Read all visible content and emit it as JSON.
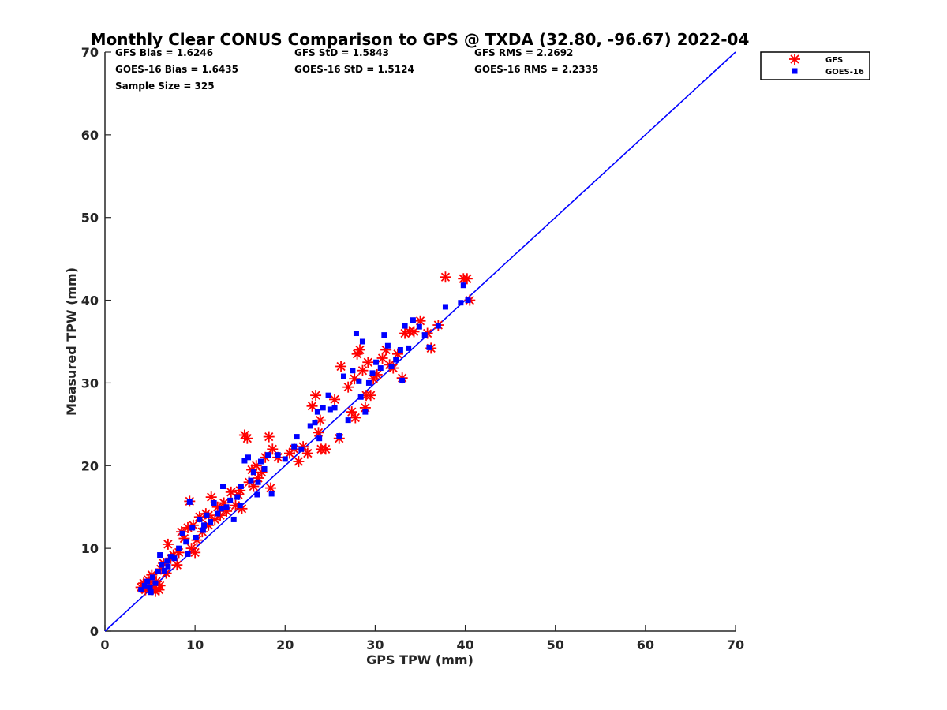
{
  "chart_data": {
    "type": "scatter",
    "title": "Monthly Clear CONUS Comparison to GPS @ TXDA (32.80, -96.67) 2022-04",
    "xlabel": "GPS TPW (mm)",
    "ylabel": "Measured TPW (mm)",
    "xlim": [
      0,
      70
    ],
    "ylim": [
      0,
      70
    ],
    "xticks": [
      "0",
      "10",
      "20",
      "30",
      "40",
      "50",
      "60",
      "70"
    ],
    "yticks": [
      "0",
      "10",
      "20",
      "30",
      "40",
      "50",
      "60",
      "70"
    ],
    "grid": false,
    "legend_position": "top-right (outside plot)",
    "stats": [
      "GFS Bias = 1.6246",
      "GFS StD = 1.5843",
      "GFS RMS = 2.2692",
      "GOES-16 Bias = 1.6435",
      "GOES-16 StD = 1.5124",
      "GOES-16 RMS = 2.2335",
      "Sample Size = 325"
    ],
    "reference_line": {
      "x": [
        0,
        70
      ],
      "y": [
        0,
        70
      ],
      "color": "#0000ff"
    },
    "series": [
      {
        "name": "GFS",
        "marker": "asterisk",
        "color": "#ff0000",
        "points": [
          [
            4.0,
            5.3
          ],
          [
            4.3,
            5.8
          ],
          [
            4.5,
            5.0
          ],
          [
            4.8,
            6.2
          ],
          [
            5.0,
            5.5
          ],
          [
            5.2,
            6.8
          ],
          [
            5.5,
            5.2
          ],
          [
            5.7,
            6.0
          ],
          [
            6.0,
            5.0
          ],
          [
            6.2,
            7.5
          ],
          [
            6.5,
            8.2
          ],
          [
            6.8,
            7.0
          ],
          [
            7.0,
            10.5
          ],
          [
            7.3,
            8.8
          ],
          [
            7.6,
            9.2
          ],
          [
            8.0,
            8.0
          ],
          [
            8.5,
            12.0
          ],
          [
            8.8,
            11.2
          ],
          [
            9.2,
            12.5
          ],
          [
            9.4,
            15.7
          ],
          [
            9.6,
            10.0
          ],
          [
            9.8,
            12.8
          ],
          [
            10.0,
            9.5
          ],
          [
            10.2,
            11.0
          ],
          [
            10.5,
            13.8
          ],
          [
            10.8,
            12.0
          ],
          [
            11.2,
            14.2
          ],
          [
            11.5,
            12.8
          ],
          [
            11.8,
            16.2
          ],
          [
            12.2,
            13.5
          ],
          [
            12.5,
            15.0
          ],
          [
            12.8,
            14.0
          ],
          [
            13.2,
            15.5
          ],
          [
            13.5,
            14.5
          ],
          [
            14.0,
            16.8
          ],
          [
            14.5,
            15.2
          ],
          [
            15.0,
            17.0
          ],
          [
            15.2,
            14.8
          ],
          [
            15.5,
            23.7
          ],
          [
            15.8,
            23.3
          ],
          [
            16.0,
            18.0
          ],
          [
            16.3,
            19.5
          ],
          [
            16.5,
            17.5
          ],
          [
            16.8,
            20.0
          ],
          [
            17.0,
            18.5
          ],
          [
            17.4,
            19.2
          ],
          [
            17.8,
            21.0
          ],
          [
            18.2,
            23.5
          ],
          [
            18.4,
            17.3
          ],
          [
            18.6,
            22.0
          ],
          [
            19.2,
            21.0
          ],
          [
            20.5,
            21.5
          ],
          [
            21.0,
            22.0
          ],
          [
            21.5,
            20.5
          ],
          [
            22.0,
            22.3
          ],
          [
            23.0,
            27.2
          ],
          [
            23.4,
            28.5
          ],
          [
            23.7,
            24.0
          ],
          [
            23.9,
            25.5
          ],
          [
            24.0,
            22.0
          ],
          [
            24.5,
            22.0
          ],
          [
            25.5,
            28.0
          ],
          [
            26.0,
            23.3
          ],
          [
            26.2,
            32.0
          ],
          [
            27.0,
            29.5
          ],
          [
            27.4,
            26.5
          ],
          [
            27.7,
            30.5
          ],
          [
            28.0,
            33.5
          ],
          [
            28.3,
            34.0
          ],
          [
            28.6,
            31.5
          ],
          [
            28.9,
            27.0
          ],
          [
            29.2,
            32.5
          ],
          [
            29.5,
            28.5
          ],
          [
            29.8,
            30.5
          ],
          [
            30.2,
            31.0
          ],
          [
            30.8,
            33.0
          ],
          [
            31.2,
            34.0
          ],
          [
            31.6,
            32.2
          ],
          [
            32.0,
            31.8
          ],
          [
            32.5,
            33.5
          ],
          [
            33.0,
            30.6
          ],
          [
            33.3,
            36.0
          ],
          [
            33.8,
            36.2
          ],
          [
            34.3,
            36.2
          ],
          [
            35.0,
            37.5
          ],
          [
            35.8,
            36.0
          ],
          [
            36.2,
            34.2
          ],
          [
            37.0,
            37.0
          ],
          [
            37.8,
            42.8
          ],
          [
            39.8,
            42.6
          ],
          [
            40.2,
            42.6
          ],
          [
            40.5,
            40.0
          ],
          [
            5.6,
            4.8
          ],
          [
            6.1,
            5.5
          ],
          [
            8.2,
            9.5
          ],
          [
            11.5,
            14.0
          ],
          [
            14.8,
            16.5
          ],
          [
            22.5,
            21.5
          ],
          [
            27.8,
            25.8
          ],
          [
            29.0,
            28.5
          ]
        ]
      },
      {
        "name": "GOES-16",
        "marker": "square",
        "color": "#0000ff",
        "points": [
          [
            4.0,
            5.0
          ],
          [
            4.4,
            5.5
          ],
          [
            4.7,
            6.0
          ],
          [
            5.0,
            5.2
          ],
          [
            5.3,
            6.5
          ],
          [
            5.6,
            5.8
          ],
          [
            5.9,
            7.2
          ],
          [
            6.1,
            9.2
          ],
          [
            6.3,
            8.0
          ],
          [
            6.6,
            7.3
          ],
          [
            6.9,
            8.5
          ],
          [
            7.3,
            9.0
          ],
          [
            7.7,
            8.8
          ],
          [
            8.2,
            10.0
          ],
          [
            8.6,
            11.8
          ],
          [
            9.0,
            10.8
          ],
          [
            9.4,
            15.6
          ],
          [
            9.7,
            12.5
          ],
          [
            10.1,
            11.3
          ],
          [
            10.5,
            13.5
          ],
          [
            10.9,
            12.2
          ],
          [
            11.3,
            14.0
          ],
          [
            11.7,
            13.2
          ],
          [
            12.1,
            15.5
          ],
          [
            12.5,
            14.2
          ],
          [
            12.9,
            14.8
          ],
          [
            13.1,
            17.5
          ],
          [
            13.5,
            15.0
          ],
          [
            13.9,
            15.8
          ],
          [
            14.3,
            13.5
          ],
          [
            14.7,
            16.2
          ],
          [
            15.1,
            17.5
          ],
          [
            15.5,
            20.6
          ],
          [
            15.9,
            21.0
          ],
          [
            16.2,
            18.2
          ],
          [
            16.5,
            19.2
          ],
          [
            16.9,
            16.5
          ],
          [
            17.3,
            20.5
          ],
          [
            17.7,
            19.6
          ],
          [
            18.1,
            21.3
          ],
          [
            18.5,
            16.6
          ],
          [
            19.2,
            21.3
          ],
          [
            21.0,
            22.3
          ],
          [
            21.3,
            23.5
          ],
          [
            21.8,
            22.0
          ],
          [
            22.8,
            24.8
          ],
          [
            23.3,
            25.2
          ],
          [
            23.6,
            26.5
          ],
          [
            23.8,
            23.3
          ],
          [
            24.2,
            27.0
          ],
          [
            24.8,
            28.5
          ],
          [
            25.5,
            27.0
          ],
          [
            26.0,
            23.6
          ],
          [
            26.5,
            30.8
          ],
          [
            27.0,
            25.5
          ],
          [
            27.5,
            31.5
          ],
          [
            27.9,
            36.0
          ],
          [
            28.2,
            30.2
          ],
          [
            28.6,
            35.0
          ],
          [
            28.9,
            26.5
          ],
          [
            29.3,
            30.0
          ],
          [
            29.7,
            31.2
          ],
          [
            30.1,
            32.5
          ],
          [
            30.6,
            31.8
          ],
          [
            31.0,
            35.8
          ],
          [
            31.4,
            34.5
          ],
          [
            31.8,
            32.0
          ],
          [
            32.3,
            32.8
          ],
          [
            32.8,
            34.0
          ],
          [
            33.0,
            30.3
          ],
          [
            33.3,
            36.9
          ],
          [
            33.7,
            34.2
          ],
          [
            34.2,
            37.6
          ],
          [
            34.9,
            36.8
          ],
          [
            35.5,
            35.8
          ],
          [
            36.0,
            34.3
          ],
          [
            37.0,
            36.9
          ],
          [
            37.8,
            39.2
          ],
          [
            39.5,
            39.7
          ],
          [
            39.8,
            41.8
          ],
          [
            40.3,
            40.0
          ],
          [
            5.1,
            4.7
          ],
          [
            7.0,
            7.8
          ],
          [
            9.2,
            9.3
          ],
          [
            11.0,
            12.8
          ],
          [
            15.0,
            15.2
          ],
          [
            17.0,
            18.0
          ],
          [
            20.0,
            20.8
          ],
          [
            25.0,
            26.8
          ],
          [
            28.4,
            28.3
          ]
        ]
      }
    ]
  }
}
